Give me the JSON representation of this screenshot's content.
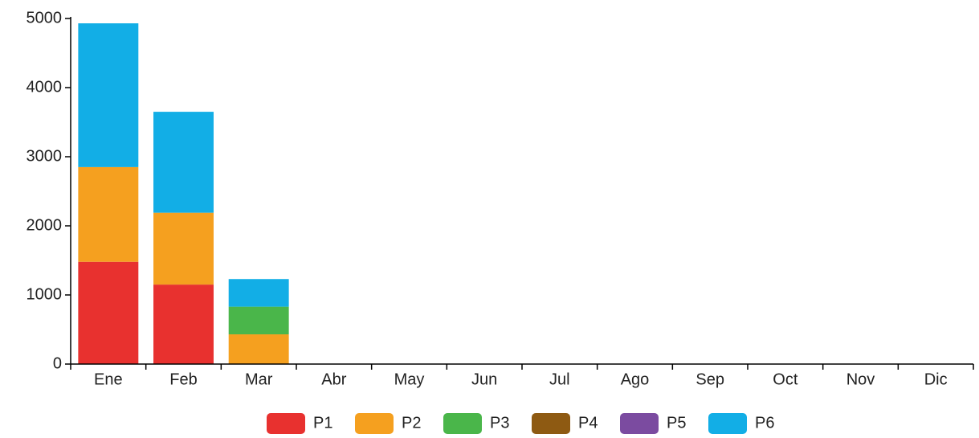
{
  "chart_data": {
    "type": "stacked_bar",
    "categories": [
      "Ene",
      "Feb",
      "Mar",
      "Abr",
      "May",
      "Jun",
      "Jul",
      "Ago",
      "Sep",
      "Oct",
      "Nov",
      "Dic"
    ],
    "series": [
      {
        "name": "P1",
        "color": "#e8312f",
        "values": [
          1480,
          1150,
          0,
          0,
          0,
          0,
          0,
          0,
          0,
          0,
          0,
          0
        ]
      },
      {
        "name": "P2",
        "color": "#f5a01f",
        "values": [
          1370,
          1040,
          430,
          0,
          0,
          0,
          0,
          0,
          0,
          0,
          0,
          0
        ]
      },
      {
        "name": "P3",
        "color": "#4ab64a",
        "values": [
          0,
          0,
          400,
          0,
          0,
          0,
          0,
          0,
          0,
          0,
          0,
          0
        ]
      },
      {
        "name": "P4",
        "color": "#8e5a12",
        "values": [
          0,
          0,
          0,
          0,
          0,
          0,
          0,
          0,
          0,
          0,
          0,
          0
        ]
      },
      {
        "name": "P5",
        "color": "#7b4ba0",
        "values": [
          0,
          0,
          0,
          0,
          0,
          0,
          0,
          0,
          0,
          0,
          0,
          0
        ]
      },
      {
        "name": "P6",
        "color": "#12aee6",
        "values": [
          2080,
          1460,
          400,
          0,
          0,
          0,
          0,
          0,
          0,
          0,
          0,
          0
        ]
      }
    ],
    "ylim": [
      0,
      5000
    ],
    "yticks": [
      0,
      1000,
      2000,
      3000,
      4000,
      5000
    ],
    "grid": false,
    "legend": "bottom"
  }
}
